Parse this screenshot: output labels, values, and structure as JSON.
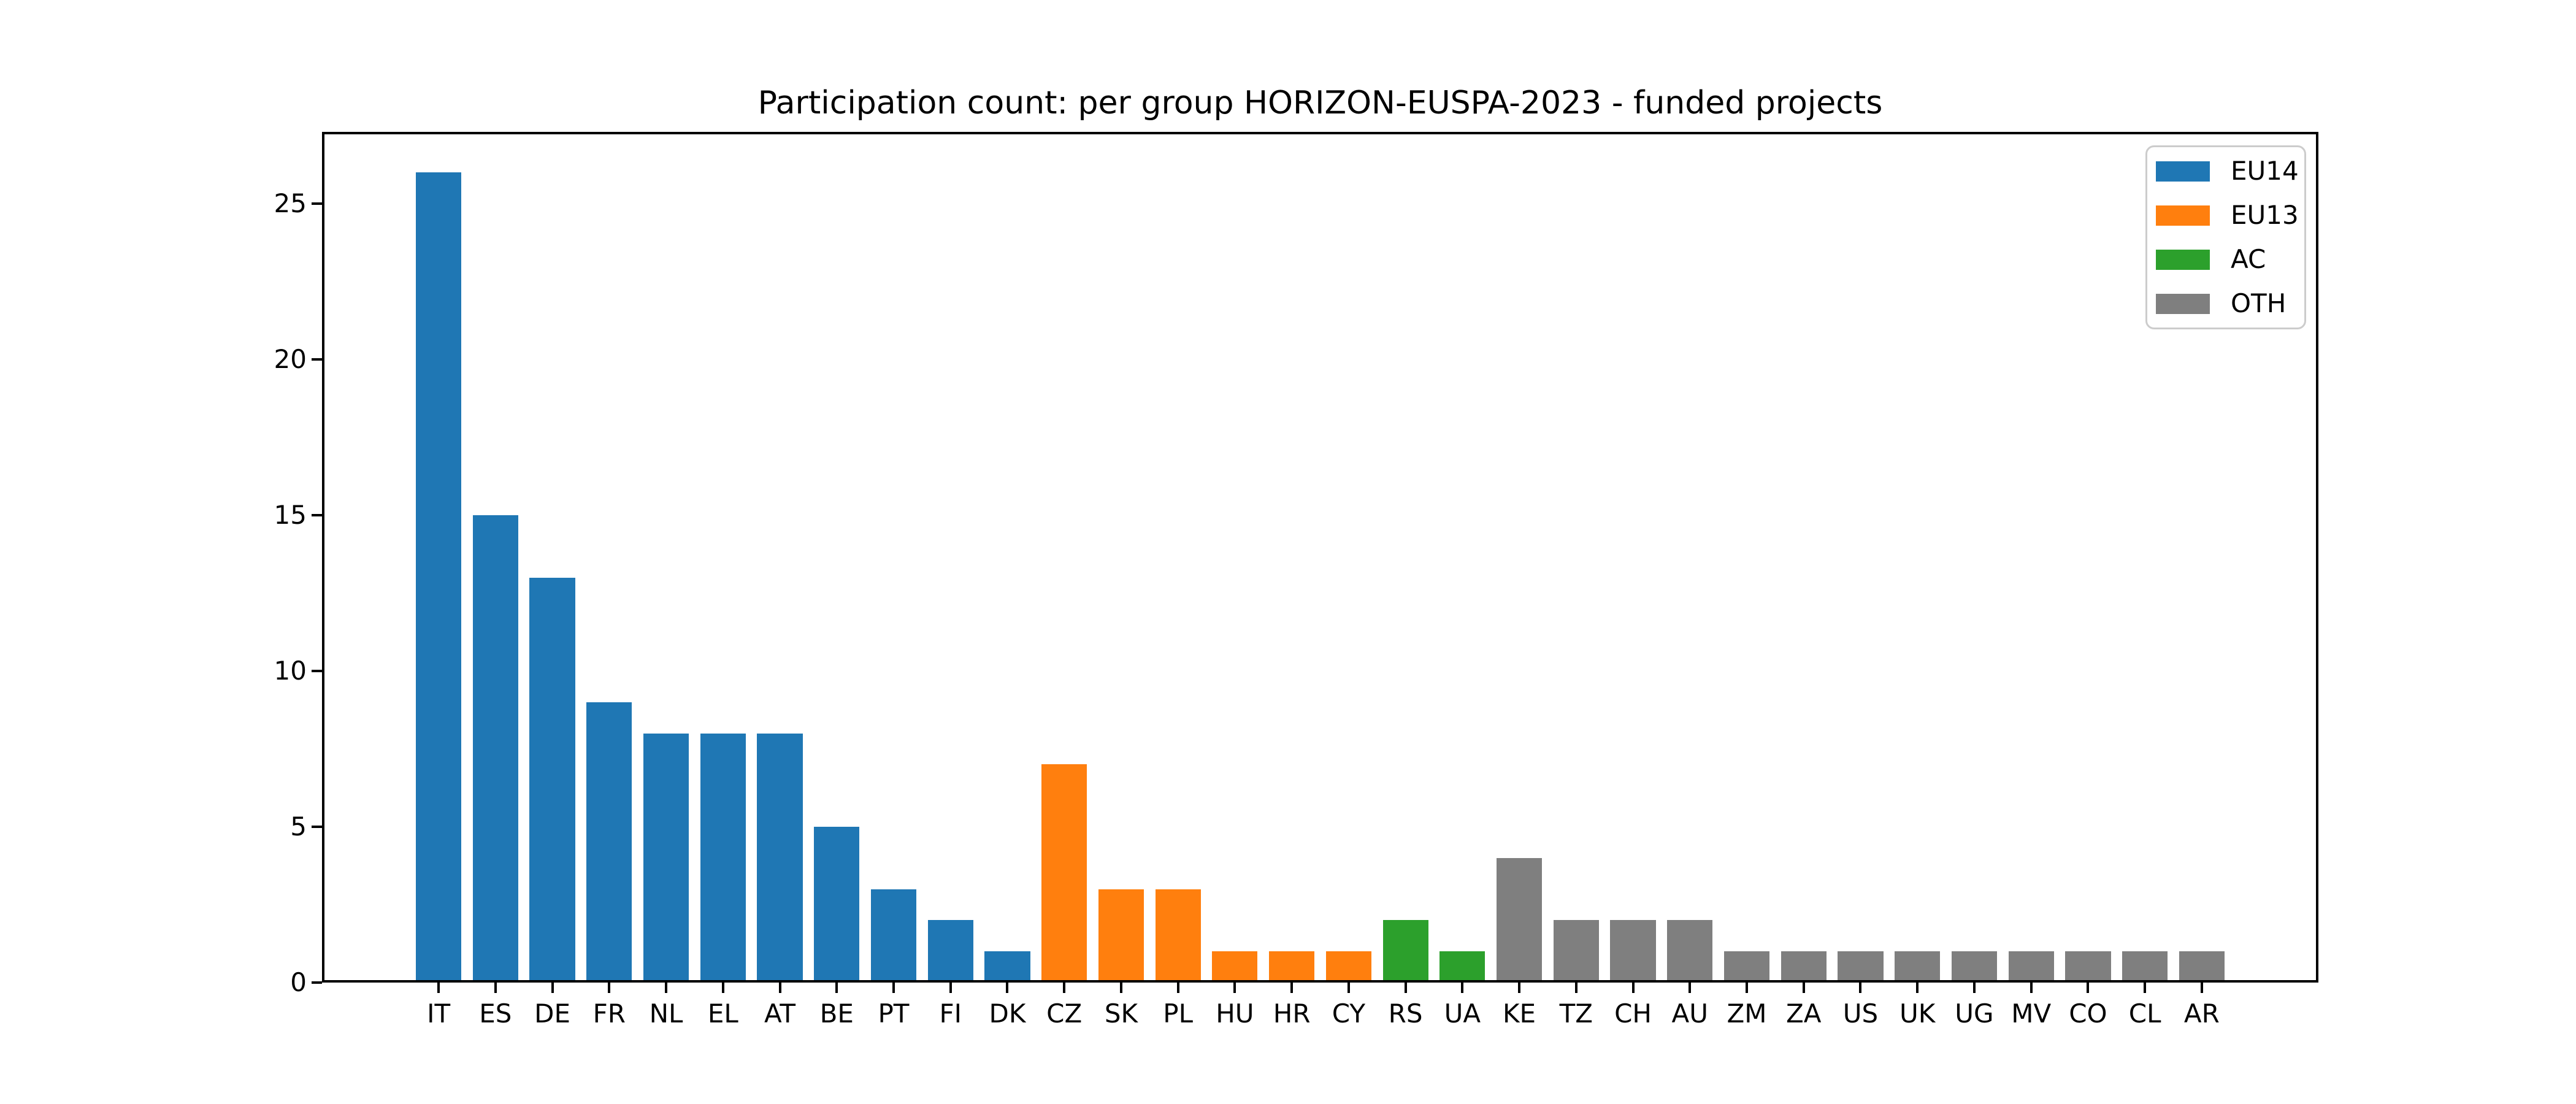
{
  "title": "Participation count: per group HORIZON-EUSPA-2023 - funded projects",
  "background": "#ffffff",
  "axis_color": "#000000",
  "legend": {
    "position": "upper right",
    "items": [
      {
        "label": "EU14",
        "color": "#1f77b4"
      },
      {
        "label": "EU13",
        "color": "#ff7f0e"
      },
      {
        "label": "AC",
        "color": "#2ca02c"
      },
      {
        "label": "OTH",
        "color": "#7f7f7f"
      }
    ]
  },
  "chart_data": {
    "type": "bar",
    "title": "Participation count: per group HORIZON-EUSPA-2023 - funded projects",
    "xlabel": "",
    "ylabel": "",
    "grid": false,
    "legend_position": "upper right",
    "categories": [
      "IT",
      "ES",
      "DE",
      "FR",
      "NL",
      "EL",
      "AT",
      "BE",
      "PT",
      "FI",
      "DK",
      "CZ",
      "SK",
      "PL",
      "HU",
      "HR",
      "CY",
      "RS",
      "UA",
      "KE",
      "TZ",
      "CH",
      "AU",
      "ZM",
      "ZA",
      "US",
      "UK",
      "UG",
      "MV",
      "CO",
      "CL",
      "AR"
    ],
    "values": [
      26,
      15,
      13,
      9,
      8,
      8,
      8,
      5,
      3,
      2,
      1,
      7,
      3,
      3,
      1,
      1,
      1,
      2,
      1,
      4,
      2,
      2,
      2,
      1,
      1,
      1,
      1,
      1,
      1,
      1,
      1,
      1
    ],
    "groups": [
      "EU14",
      "EU14",
      "EU14",
      "EU14",
      "EU14",
      "EU14",
      "EU14",
      "EU14",
      "EU14",
      "EU14",
      "EU14",
      "EU13",
      "EU13",
      "EU13",
      "EU13",
      "EU13",
      "EU13",
      "AC",
      "AC",
      "OTH",
      "OTH",
      "OTH",
      "OTH",
      "OTH",
      "OTH",
      "OTH",
      "OTH",
      "OTH",
      "OTH",
      "OTH",
      "OTH",
      "OTH"
    ],
    "group_colors": {
      "EU14": "#1f77b4",
      "EU13": "#ff7f0e",
      "AC": "#2ca02c",
      "OTH": "#7f7f7f"
    },
    "yticks": [
      0,
      5,
      10,
      15,
      20,
      25
    ],
    "ylim": [
      0,
      27.3
    ]
  }
}
